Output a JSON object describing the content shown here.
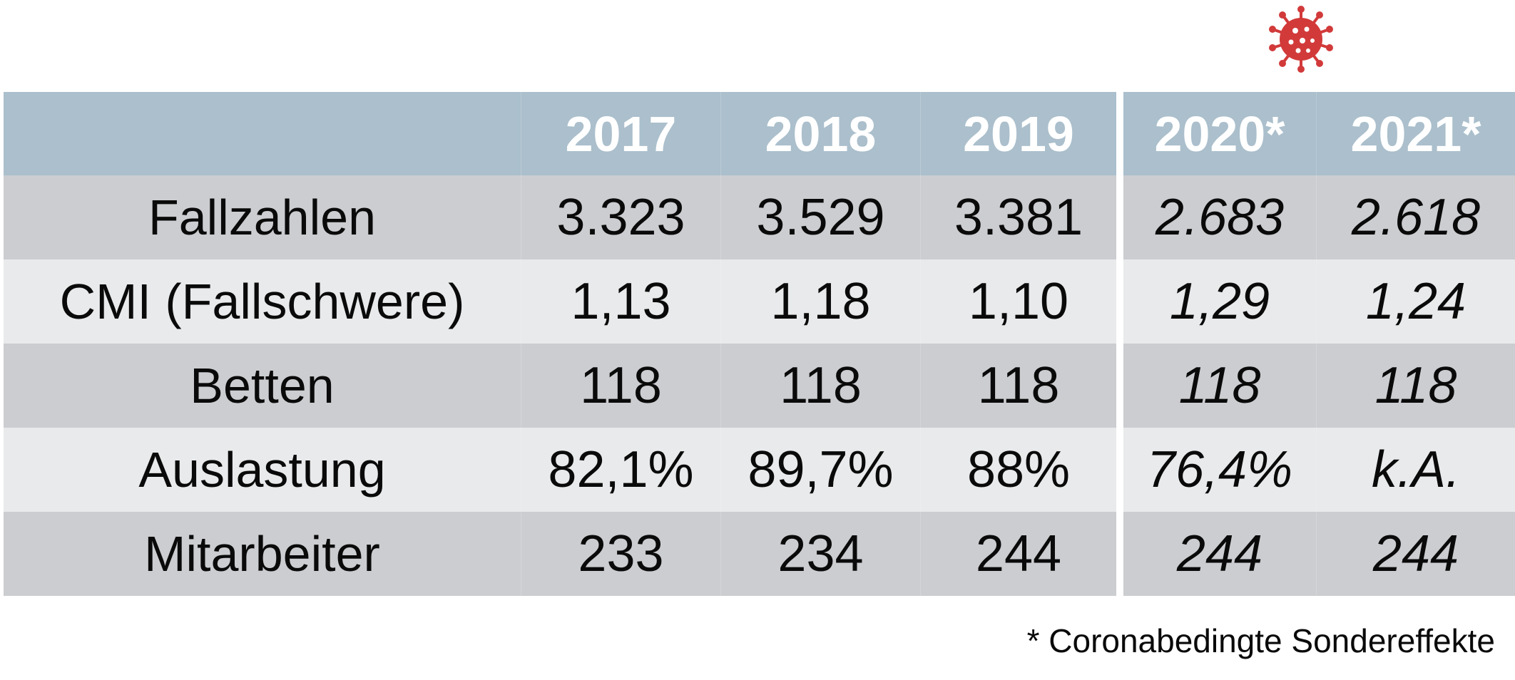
{
  "table": {
    "header": [
      "",
      "2017",
      "2018",
      "2019",
      "2020*",
      "2021*"
    ],
    "rows": [
      {
        "label": "Fallzahlen",
        "values": [
          "3.323",
          "3.529",
          "3.381",
          "2.683",
          "2.618"
        ]
      },
      {
        "label": "CMI (Fallschwere)",
        "values": [
          "1,13",
          "1,18",
          "1,10",
          "1,29",
          "1,24"
        ]
      },
      {
        "label": "Betten",
        "values": [
          "118",
          "118",
          "118",
          "118",
          "118"
        ]
      },
      {
        "label": "Auslastung",
        "values": [
          "82,1%",
          "89,7%",
          "88%",
          "76,4%",
          "k.A."
        ]
      },
      {
        "label": "Mitarbeiter",
        "values": [
          "233",
          "234",
          "244",
          "244",
          "244"
        ]
      }
    ]
  },
  "footnote": "* Coronabedingte Sondereffekte",
  "icon": {
    "name": "coronavirus-icon",
    "color": "#d23a3a"
  },
  "colors": {
    "header_bg": "#abbfcc",
    "row_dark": "#cbcdd0",
    "row_light": "#e8eaeb",
    "text": "#0a0a0a"
  }
}
